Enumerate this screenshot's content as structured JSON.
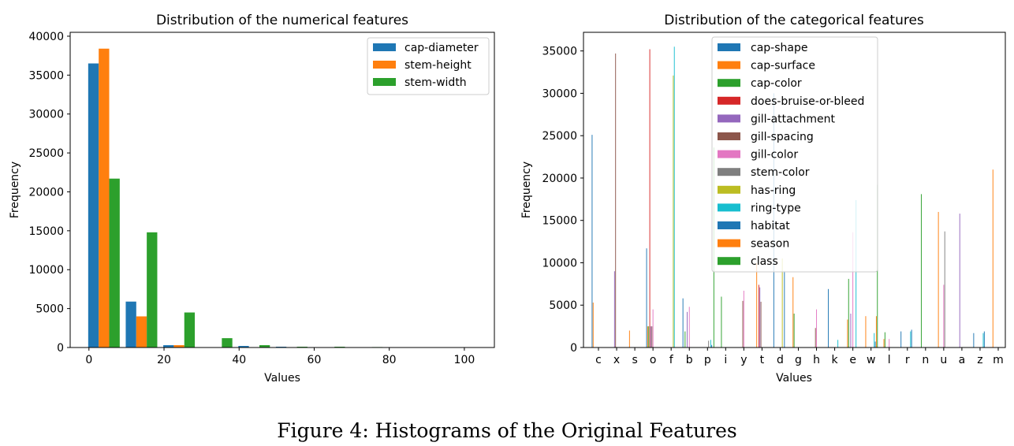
{
  "caption": "Figure 4: Histograms of the Original Features",
  "chart_data": [
    {
      "type": "bar",
      "title": "Distribution of the numerical features",
      "xlabel": "Values",
      "ylabel": "Frequency",
      "xlim": [
        -5,
        108
      ],
      "ylim": [
        0,
        40500
      ],
      "xticks": [
        0,
        20,
        40,
        60,
        80,
        100
      ],
      "yticks": [
        0,
        5000,
        10000,
        15000,
        20000,
        25000,
        30000,
        35000,
        40000
      ],
      "legend_position": "top-right",
      "x": [
        4,
        14,
        24,
        34,
        44,
        54,
        64,
        74,
        84,
        94
      ],
      "series": [
        {
          "name": "cap-diameter",
          "color": "#1f77b4",
          "values": [
            36500,
            5900,
            300,
            0,
            200,
            100,
            0,
            0,
            0,
            0
          ]
        },
        {
          "name": "stem-height",
          "color": "#ff7f0e",
          "values": [
            38400,
            4000,
            300,
            0,
            0,
            0,
            0,
            0,
            0,
            0
          ]
        },
        {
          "name": "stem-width",
          "color": "#2ca02c",
          "values": [
            21700,
            14800,
            4500,
            1200,
            300,
            100,
            100,
            60,
            30,
            0
          ]
        }
      ]
    },
    {
      "type": "bar",
      "title": "Distribution of the categorical features",
      "xlabel": "Values",
      "ylabel": "Frequency",
      "ylim": [
        0,
        37200
      ],
      "yticks": [
        0,
        5000,
        10000,
        15000,
        20000,
        25000,
        30000,
        35000
      ],
      "legend_position": "top-center",
      "categories": [
        "c",
        "x",
        "s",
        "o",
        "f",
        "b",
        "p",
        "i",
        "y",
        "t",
        "d",
        "g",
        "h",
        "k",
        "e",
        "w",
        "l",
        "r",
        "n",
        "u",
        "a",
        "z",
        "m"
      ],
      "series": [
        {
          "name": "cap-shape",
          "color": "#1f77b4",
          "values": [
            25100,
            0,
            0,
            11700,
            0,
            5800,
            0,
            0,
            0,
            0,
            30000,
            0,
            0,
            6900,
            0,
            0,
            0,
            1900,
            0,
            0,
            0,
            1700,
            0
          ]
        },
        {
          "name": "cap-surface",
          "color": "#ff7f0e",
          "values": [
            5300,
            0,
            2000,
            2500,
            0,
            0,
            0,
            0,
            0,
            10000,
            0,
            8300,
            0,
            0,
            3300,
            3700,
            1000,
            0,
            0,
            16000,
            0,
            0,
            21000
          ]
        },
        {
          "name": "cap-color",
          "color": "#2ca02c",
          "values": [
            0,
            0,
            0,
            2500,
            0,
            1900,
            0,
            6000,
            0,
            0,
            0,
            4000,
            0,
            0,
            8100,
            0,
            1800,
            0,
            18100,
            0,
            0,
            0,
            0
          ]
        },
        {
          "name": "does-bruise-or-bleed",
          "color": "#d62728",
          "values": [
            0,
            0,
            0,
            35200,
            0,
            0,
            0,
            0,
            0,
            7400,
            0,
            0,
            0,
            0,
            0,
            0,
            0,
            0,
            0,
            0,
            0,
            0,
            0
          ]
        },
        {
          "name": "gill-attachment",
          "color": "#9467bd",
          "values": [
            0,
            9000,
            0,
            2500,
            0,
            4200,
            0,
            0,
            0,
            7100,
            0,
            0,
            0,
            0,
            4000,
            0,
            0,
            0,
            0,
            0,
            15800,
            0,
            0
          ]
        },
        {
          "name": "gill-spacing",
          "color": "#8c564b",
          "values": [
            0,
            34700,
            0,
            2500,
            0,
            0,
            0,
            0,
            5500,
            5400,
            0,
            0,
            2300,
            0,
            0,
            0,
            0,
            0,
            0,
            0,
            0,
            0,
            0
          ]
        },
        {
          "name": "gill-color",
          "color": "#e377c2",
          "values": [
            0,
            0,
            0,
            4500,
            0,
            4800,
            0,
            0,
            6700,
            0,
            0,
            0,
            4500,
            0,
            13600,
            0,
            1000,
            0,
            0,
            7400,
            0,
            0,
            0
          ]
        },
        {
          "name": "stem-color",
          "color": "#7f7f7f",
          "values": [
            0,
            0,
            0,
            0,
            0,
            0,
            800,
            0,
            0,
            0,
            0,
            0,
            0,
            0,
            0,
            0,
            0,
            0,
            0,
            13700,
            0,
            0,
            0
          ]
        },
        {
          "name": "has-ring",
          "color": "#bcbd22",
          "values": [
            0,
            0,
            0,
            0,
            32100,
            0,
            0,
            0,
            0,
            0,
            10500,
            0,
            0,
            0,
            0,
            0,
            0,
            0,
            0,
            0,
            0,
            0,
            0
          ]
        },
        {
          "name": "ring-type",
          "color": "#17becf",
          "values": [
            0,
            0,
            0,
            0,
            35500,
            0,
            900,
            0,
            0,
            0,
            0,
            0,
            0,
            900,
            17400,
            1700,
            0,
            1900,
            0,
            0,
            0,
            1700,
            0
          ]
        },
        {
          "name": "habitat",
          "color": "#1f77b4",
          "values": [
            0,
            0,
            0,
            0,
            0,
            0,
            300,
            0,
            0,
            0,
            9000,
            0,
            0,
            0,
            0,
            700,
            0,
            2100,
            0,
            0,
            0,
            1900,
            0
          ]
        },
        {
          "name": "season",
          "color": "#ff7f0e",
          "values": [
            0,
            0,
            0,
            0,
            0,
            0,
            0,
            0,
            0,
            0,
            0,
            0,
            0,
            0,
            0,
            3700,
            0,
            0,
            0,
            0,
            0,
            0,
            0
          ]
        },
        {
          "name": "class",
          "color": "#2ca02c",
          "values": [
            0,
            0,
            0,
            0,
            0,
            0,
            23600,
            0,
            0,
            0,
            0,
            0,
            0,
            0,
            0,
            19200,
            0,
            0,
            0,
            0,
            0,
            0,
            0
          ]
        }
      ]
    }
  ]
}
